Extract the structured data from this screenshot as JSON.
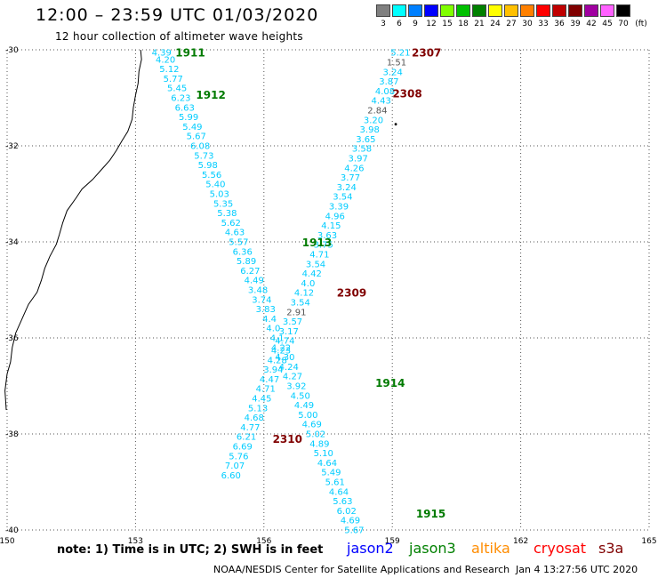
{
  "title": "12:00 – 23:59 UTC 01/03/2020",
  "subtitle": "12 hour collection of altimeter wave heights",
  "scale": {
    "unit": "(ft)",
    "entries": [
      {
        "label": "3",
        "color": "#808080"
      },
      {
        "label": "6",
        "color": "#00ffff"
      },
      {
        "label": "9",
        "color": "#0080ff"
      },
      {
        "label": "12",
        "color": "#0000ff"
      },
      {
        "label": "15",
        "color": "#80ff00"
      },
      {
        "label": "18",
        "color": "#00c000"
      },
      {
        "label": "21",
        "color": "#008000"
      },
      {
        "label": "24",
        "color": "#ffff00"
      },
      {
        "label": "27",
        "color": "#ffc000"
      },
      {
        "label": "30",
        "color": "#ff8000"
      },
      {
        "label": "33",
        "color": "#ff0000"
      },
      {
        "label": "36",
        "color": "#c00000"
      },
      {
        "label": "39",
        "color": "#800000"
      },
      {
        "label": "42",
        "color": "#a000a0"
      },
      {
        "label": "45",
        "color": "#ff60ff"
      },
      {
        "label": "70",
        "color": "#000000"
      }
    ]
  },
  "map": {
    "lon_range": [
      150,
      165
    ],
    "lat_range": [
      -30,
      -40
    ],
    "lon_ticks": [
      "150",
      "153",
      "156",
      "159",
      "162",
      "165"
    ],
    "lat_ticks": [
      "-30",
      "-32",
      "-34",
      "-36",
      "-38",
      "-40"
    ],
    "colors": {
      "cyan": "#00ccff",
      "gray": "#555555",
      "green": "#007a00",
      "maroon": "#800000"
    }
  },
  "tracks": [
    {
      "id": "jason3-desc",
      "satellite": "jason3",
      "points": [
        {
          "lon": 153.61,
          "lat": -30.05,
          "swh": "4.39"
        },
        {
          "lon": 153.7,
          "lat": -30.19,
          "swh": "4.20"
        },
        {
          "lon": 153.79,
          "lat": -30.39,
          "swh": "5.12"
        },
        {
          "lon": 153.88,
          "lat": -30.59,
          "swh": "5.77"
        },
        {
          "lon": 153.97,
          "lat": -30.79,
          "swh": "5.45"
        },
        {
          "lon": 154.06,
          "lat": -30.99,
          "swh": "6.23"
        },
        {
          "lon": 154.15,
          "lat": -31.19,
          "swh": "6.63"
        },
        {
          "lon": 154.24,
          "lat": -31.39,
          "swh": "5.99"
        },
        {
          "lon": 154.33,
          "lat": -31.59,
          "swh": "5.49"
        },
        {
          "lon": 154.42,
          "lat": -31.79,
          "swh": "5.67"
        },
        {
          "lon": 154.51,
          "lat": -31.99,
          "swh": "6.08"
        },
        {
          "lon": 154.6,
          "lat": -32.19,
          "swh": "5.73"
        },
        {
          "lon": 154.69,
          "lat": -32.39,
          "swh": "5.98"
        },
        {
          "lon": 154.78,
          "lat": -32.59,
          "swh": "5.56"
        },
        {
          "lon": 154.87,
          "lat": -32.79,
          "swh": "5.40"
        },
        {
          "lon": 154.96,
          "lat": -32.99,
          "swh": "5.03"
        },
        {
          "lon": 155.05,
          "lat": -33.19,
          "swh": "5.35"
        },
        {
          "lon": 155.14,
          "lat": -33.39,
          "swh": "5.38"
        },
        {
          "lon": 155.23,
          "lat": -33.59,
          "swh": "5.62"
        },
        {
          "lon": 155.32,
          "lat": -33.79,
          "swh": "4.63"
        },
        {
          "lon": 155.41,
          "lat": -33.99,
          "swh": "5.57"
        },
        {
          "lon": 155.5,
          "lat": -34.19,
          "swh": "6.36"
        },
        {
          "lon": 155.59,
          "lat": -34.39,
          "swh": "5.89"
        },
        {
          "lon": 155.68,
          "lat": -34.59,
          "swh": "6.27"
        },
        {
          "lon": 155.77,
          "lat": -34.79,
          "swh": "4.49"
        },
        {
          "lon": 155.86,
          "lat": -34.99,
          "swh": "3.48"
        },
        {
          "lon": 155.95,
          "lat": -35.19,
          "swh": "3.74"
        },
        {
          "lon": 156.04,
          "lat": -35.39,
          "swh": "3.83"
        },
        {
          "lon": 156.13,
          "lat": -35.59,
          "swh": "4.4"
        },
        {
          "lon": 156.22,
          "lat": -35.79,
          "swh": "4.0"
        },
        {
          "lon": 156.31,
          "lat": -35.99,
          "swh": "4.1"
        },
        {
          "lon": 156.4,
          "lat": -36.19,
          "swh": "4.22"
        },
        {
          "lon": 156.49,
          "lat": -36.39,
          "swh": "4.30"
        },
        {
          "lon": 156.58,
          "lat": -36.59,
          "swh": "4.24"
        },
        {
          "lon": 156.67,
          "lat": -36.79,
          "swh": "4.27"
        },
        {
          "lon": 156.76,
          "lat": -36.99,
          "swh": "3.92"
        },
        {
          "lon": 156.85,
          "lat": -37.19,
          "swh": "4.50"
        },
        {
          "lon": 156.94,
          "lat": -37.39,
          "swh": "4.49"
        },
        {
          "lon": 157.03,
          "lat": -37.59,
          "swh": "5.00"
        },
        {
          "lon": 157.12,
          "lat": -37.79,
          "swh": "4.69"
        },
        {
          "lon": 157.21,
          "lat": -37.99,
          "swh": "5.02"
        },
        {
          "lon": 157.3,
          "lat": -38.19,
          "swh": "4.89"
        },
        {
          "lon": 157.39,
          "lat": -38.39,
          "swh": "5.10"
        },
        {
          "lon": 157.48,
          "lat": -38.59,
          "swh": "4.64"
        },
        {
          "lon": 157.57,
          "lat": -38.79,
          "swh": "5.49"
        },
        {
          "lon": 157.66,
          "lat": -38.99,
          "swh": "5.61"
        },
        {
          "lon": 157.75,
          "lat": -39.19,
          "swh": "4.64"
        },
        {
          "lon": 157.84,
          "lat": -39.39,
          "swh": "5.63"
        },
        {
          "lon": 157.93,
          "lat": -39.59,
          "swh": "6.02"
        },
        {
          "lon": 158.02,
          "lat": -39.79,
          "swh": "4.69"
        },
        {
          "lon": 158.11,
          "lat": -39.99,
          "swh": "5.67"
        }
      ]
    },
    {
      "id": "s3a-asc",
      "satellite": "s3a",
      "points": [
        {
          "lon": 159.19,
          "lat": -30.05,
          "swh": "5.21"
        },
        {
          "lon": 159.1,
          "lat": -30.25,
          "swh": "1.51"
        },
        {
          "lon": 159.01,
          "lat": -30.45,
          "swh": "3.24"
        },
        {
          "lon": 158.92,
          "lat": -30.65,
          "swh": "3.87"
        },
        {
          "lon": 158.83,
          "lat": -30.85,
          "swh": "4.08"
        },
        {
          "lon": 158.74,
          "lat": -31.05,
          "swh": "4.43"
        },
        {
          "lon": 158.65,
          "lat": -31.25,
          "swh": "2.84"
        },
        {
          "lon": 158.56,
          "lat": -31.45,
          "swh": "3.20"
        },
        {
          "lon": 158.47,
          "lat": -31.65,
          "swh": "3.98"
        },
        {
          "lon": 158.38,
          "lat": -31.85,
          "swh": "3.65"
        },
        {
          "lon": 158.29,
          "lat": -32.05,
          "swh": "3.58"
        },
        {
          "lon": 158.2,
          "lat": -32.25,
          "swh": "3.97"
        },
        {
          "lon": 158.11,
          "lat": -32.45,
          "swh": "4.26"
        },
        {
          "lon": 158.02,
          "lat": -32.65,
          "swh": "3.77"
        },
        {
          "lon": 157.93,
          "lat": -32.85,
          "swh": "3.24"
        },
        {
          "lon": 157.84,
          "lat": -33.05,
          "swh": "3.54"
        },
        {
          "lon": 157.75,
          "lat": -33.25,
          "swh": "3.39"
        },
        {
          "lon": 157.66,
          "lat": -33.45,
          "swh": "4.96"
        },
        {
          "lon": 157.57,
          "lat": -33.65,
          "swh": "4.15"
        },
        {
          "lon": 157.48,
          "lat": -33.85,
          "swh": "3.63"
        },
        {
          "lon": 157.39,
          "lat": -34.05,
          "swh": "3.75"
        },
        {
          "lon": 157.3,
          "lat": -34.25,
          "swh": "4.71"
        },
        {
          "lon": 157.21,
          "lat": -34.45,
          "swh": "3.54"
        },
        {
          "lon": 157.12,
          "lat": -34.65,
          "swh": "4.42"
        },
        {
          "lon": 157.03,
          "lat": -34.85,
          "swh": "4.0"
        },
        {
          "lon": 156.94,
          "lat": -35.05,
          "swh": "4.12"
        },
        {
          "lon": 156.85,
          "lat": -35.25,
          "swh": "3.54"
        },
        {
          "lon": 156.76,
          "lat": -35.45,
          "swh": "2.91"
        },
        {
          "lon": 156.67,
          "lat": -35.65,
          "swh": "3.57"
        },
        {
          "lon": 156.58,
          "lat": -35.85,
          "swh": "3.17"
        },
        {
          "lon": 156.49,
          "lat": -36.05,
          "swh": "4.74"
        },
        {
          "lon": 156.4,
          "lat": -36.25,
          "swh": "4.23"
        },
        {
          "lon": 156.31,
          "lat": -36.45,
          "swh": "4.28"
        },
        {
          "lon": 156.22,
          "lat": -36.65,
          "swh": "3.94"
        },
        {
          "lon": 156.13,
          "lat": -36.85,
          "swh": "4.47"
        },
        {
          "lon": 156.04,
          "lat": -37.05,
          "swh": "4.71"
        },
        {
          "lon": 155.95,
          "lat": -37.25,
          "swh": "4.45"
        },
        {
          "lon": 155.86,
          "lat": -37.45,
          "swh": "5.13"
        },
        {
          "lon": 155.77,
          "lat": -37.65,
          "swh": "4.68"
        },
        {
          "lon": 155.68,
          "lat": -37.85,
          "swh": "4.77"
        },
        {
          "lon": 155.59,
          "lat": -38.05,
          "swh": "6.21"
        },
        {
          "lon": 155.5,
          "lat": -38.25,
          "swh": "6.69"
        },
        {
          "lon": 155.41,
          "lat": -38.45,
          "swh": "5.76"
        },
        {
          "lon": 155.32,
          "lat": -38.65,
          "swh": "7.07"
        },
        {
          "lon": 155.23,
          "lat": -38.85,
          "swh": "6.60"
        }
      ]
    }
  ],
  "time_labels": [
    {
      "text": "1911",
      "lon": 154.28,
      "lat": -30.05,
      "color": "green"
    },
    {
      "text": "1912",
      "lon": 154.76,
      "lat": -30.93,
      "color": "green"
    },
    {
      "text": "1913",
      "lon": 157.24,
      "lat": -34.0,
      "color": "green"
    },
    {
      "text": "1914",
      "lon": 158.95,
      "lat": -36.93,
      "color": "green"
    },
    {
      "text": "1915",
      "lon": 159.9,
      "lat": -39.65,
      "color": "green"
    },
    {
      "text": "2307",
      "lon": 159.8,
      "lat": -30.05,
      "color": "maroon"
    },
    {
      "text": "2308",
      "lon": 159.35,
      "lat": -30.9,
      "color": "maroon"
    },
    {
      "text": "2309",
      "lon": 158.05,
      "lat": -35.05,
      "color": "maroon"
    },
    {
      "text": "2310",
      "lon": 156.55,
      "lat": -38.09,
      "color": "maroon"
    }
  ],
  "note": "note:  1) Time is in UTC;  2) SWH is in feet",
  "satellites": [
    {
      "label": "jason2",
      "color": "#0000ff"
    },
    {
      "label": "jason3",
      "color": "#008000"
    },
    {
      "label": "altika",
      "color": "#ff8c00"
    },
    {
      "label": "cryosat",
      "color": "#ff0000"
    },
    {
      "label": "s3a",
      "color": "#800000"
    }
  ],
  "credit": "NOAA/NESDIS Center for Satellite Applications and Research",
  "timestamp": "Jan  4 13:27:56 UTC 2020"
}
